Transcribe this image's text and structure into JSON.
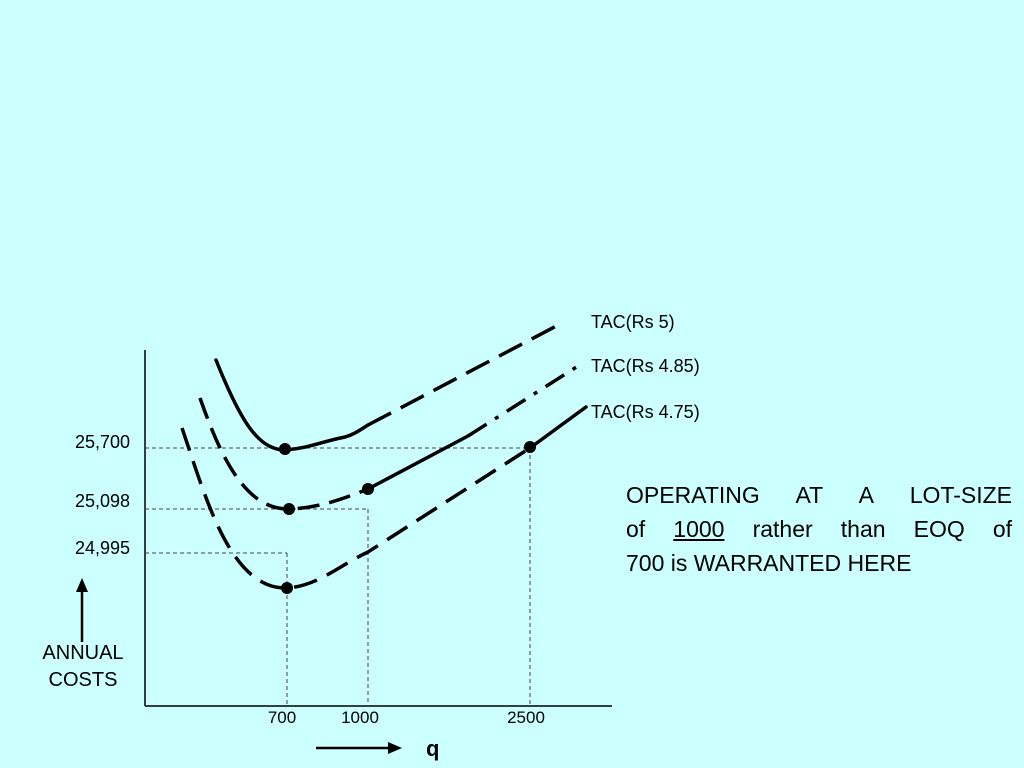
{
  "chart_data": {
    "type": "line",
    "title": "",
    "xlabel": "q",
    "ylabel": "ANNUAL COSTS",
    "curves": [
      {
        "name": "TAC(Rs 5)",
        "min_at_q": 700,
        "min_cost": 25700
      },
      {
        "name": "TAC(Rs 4.85)",
        "min_at_q": 700,
        "min_cost": 25098
      },
      {
        "name": "TAC(Rs 4.75)",
        "min_at_q": 700,
        "min_cost": 24995
      }
    ],
    "y_ticks": [
      "25,700",
      "25,098",
      "24,995"
    ],
    "x_ticks": [
      "700",
      "1000",
      "2500"
    ],
    "marked_points": [
      {
        "q": 700,
        "cost": 25700,
        "curve": "TAC(Rs 5)"
      },
      {
        "q": 700,
        "cost": 25098,
        "curve": "TAC(Rs 4.85)"
      },
      {
        "q": 1000,
        "cost": "",
        "curve": "TAC(Rs 4.85)"
      },
      {
        "q": 700,
        "cost": 24995,
        "curve": "TAC(Rs 4.75)"
      },
      {
        "q": 2500,
        "cost": 25700,
        "curve": "TAC(Rs 4.75)"
      }
    ]
  },
  "caption": {
    "line1": "OPERATING AT A LOT-SIZE",
    "of": "of",
    "underlined": "1000",
    "rest1": "rather than EOQ of",
    "line3": "700 is WARRANTED HERE"
  },
  "axis": {
    "annual_line1": "ANNUAL",
    "annual_line2": "COSTS",
    "q": "q"
  },
  "colors": {
    "background": "#ccffff",
    "ink": "#000000",
    "guide": "#444444"
  }
}
